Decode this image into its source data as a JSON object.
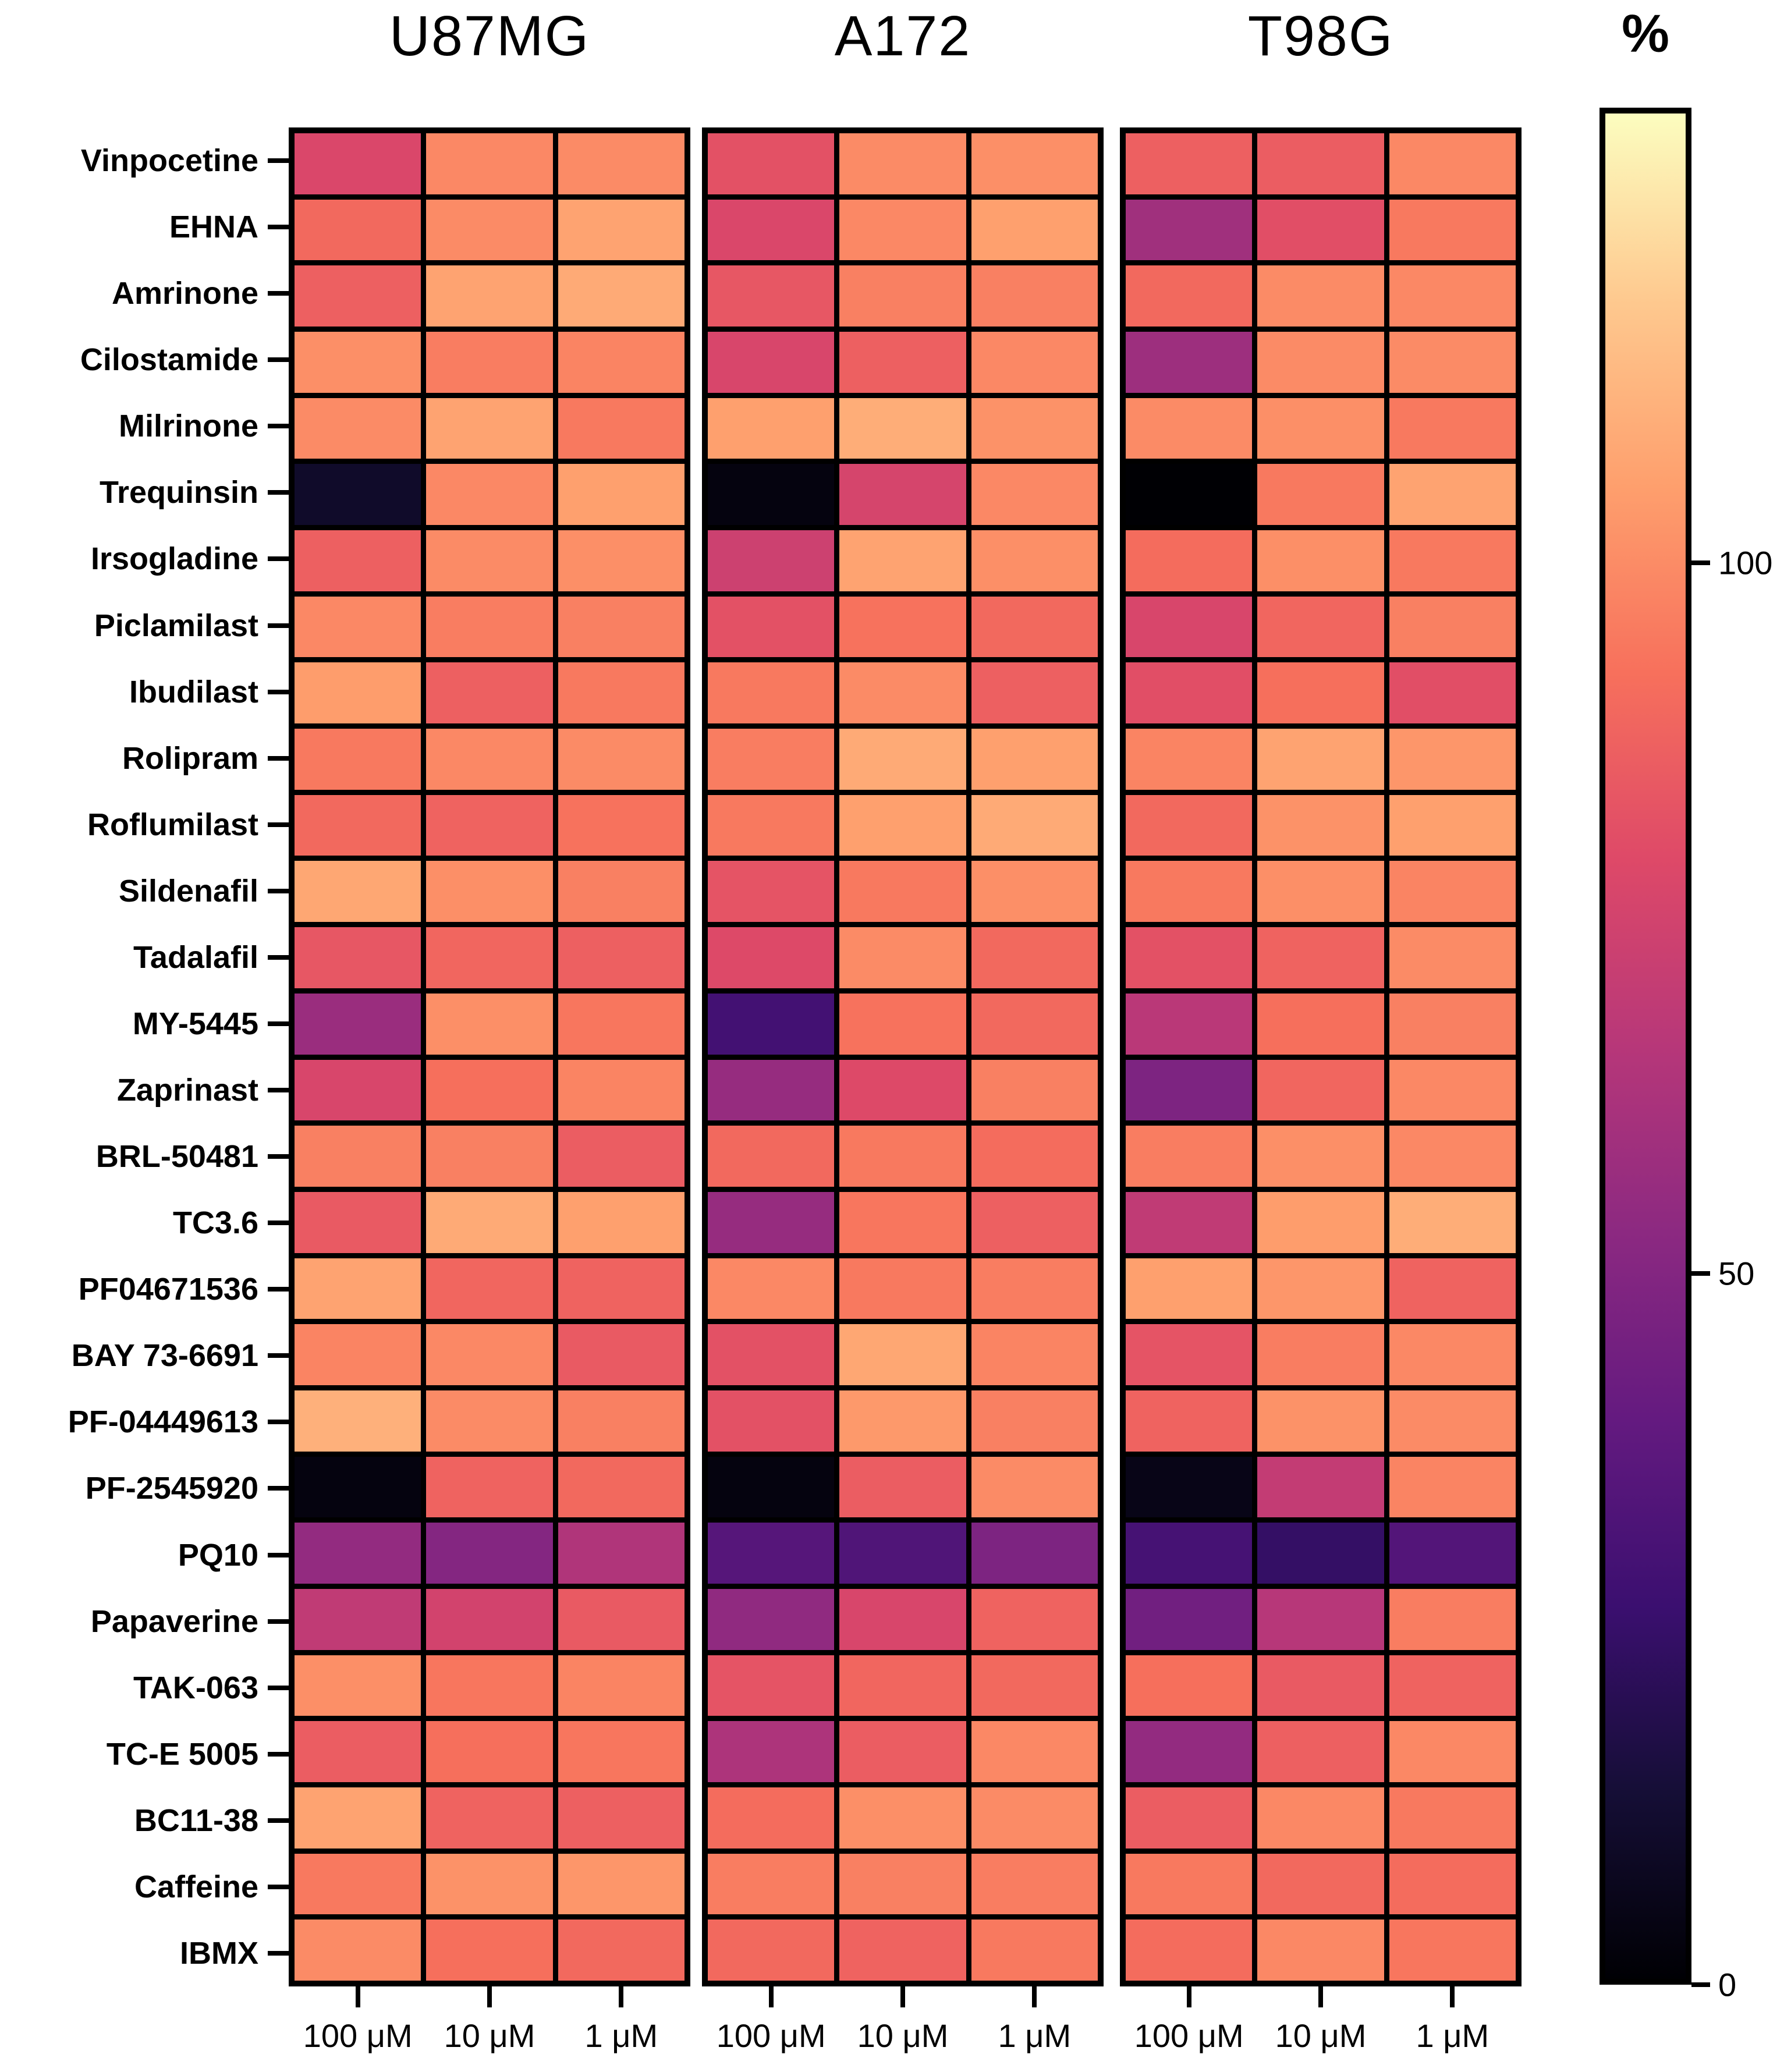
{
  "figure": {
    "colorbar_title": "%",
    "colorbar_tick_labels": [
      "100",
      "50",
      "0"
    ]
  },
  "chart_data": {
    "type": "heatmap",
    "title": "",
    "unit": "%",
    "colormap": "magma",
    "legend_position": "right-colorbar",
    "grid": "black cell borders",
    "cell_lines": [
      "U87MG",
      "A172",
      "T98G"
    ],
    "columns": [
      "100 μM",
      "10 μM",
      "1 μM"
    ],
    "rows": [
      "Vinpocetine",
      "EHNA",
      "Amrinone",
      "Cilostamide",
      "Milrinone",
      "Trequinsin",
      "Irsogladine",
      "Piclamilast",
      "Ibudilast",
      "Rolipram",
      "Roflumilast",
      "Sildenafil",
      "Tadalafil",
      "MY-5445",
      "Zaprinast",
      "BRL-50481",
      "TC3.6",
      "PF04671536",
      "BAY 73-6691",
      "PF-04449613",
      "PF-2545920",
      "PQ10",
      "Papaverine",
      "TAK-063",
      "TC-E 5005",
      "BC11-38",
      "Caffeine",
      "IBMX"
    ],
    "scale": {
      "vmin": 0,
      "vmax": 132,
      "colorbar_ticks": [
        100,
        50,
        0
      ]
    },
    "series": [
      {
        "name": "U87MG",
        "values": [
          [
            78,
            99,
            100
          ],
          [
            90,
            100,
            107
          ],
          [
            87,
            107,
            109
          ],
          [
            101,
            96,
            98
          ],
          [
            100,
            107,
            95
          ],
          [
            10,
            99,
            106
          ],
          [
            87,
            100,
            101
          ],
          [
            99,
            96,
            97
          ],
          [
            105,
            87,
            95
          ],
          [
            95,
            99,
            100
          ],
          [
            90,
            88,
            93
          ],
          [
            108,
            101,
            97
          ],
          [
            84,
            89,
            87
          ],
          [
            57,
            101,
            94
          ],
          [
            77,
            92,
            98
          ],
          [
            97,
            97,
            86
          ],
          [
            85,
            109,
            106
          ],
          [
            107,
            89,
            88
          ],
          [
            98,
            99,
            85
          ],
          [
            111,
            100,
            97
          ],
          [
            3,
            88,
            90
          ],
          [
            55,
            50,
            64
          ],
          [
            69,
            75,
            85
          ],
          [
            101,
            94,
            98
          ],
          [
            86,
            92,
            94
          ],
          [
            107,
            88,
            87
          ],
          [
            95,
            102,
            103
          ],
          [
            100,
            92,
            90
          ]
        ]
      },
      {
        "name": "A172",
        "values": [
          [
            82,
            100,
            101
          ],
          [
            78,
            99,
            106
          ],
          [
            84,
            97,
            97
          ],
          [
            77,
            87,
            99
          ],
          [
            106,
            110,
            102
          ],
          [
            3,
            76,
            99
          ],
          [
            73,
            107,
            101
          ],
          [
            82,
            93,
            90
          ],
          [
            95,
            100,
            87
          ],
          [
            96,
            109,
            106
          ],
          [
            95,
            106,
            109
          ],
          [
            83,
            95,
            101
          ],
          [
            79,
            100,
            90
          ],
          [
            29,
            93,
            90
          ],
          [
            56,
            79,
            97
          ],
          [
            90,
            95,
            91
          ],
          [
            56,
            94,
            87
          ],
          [
            99,
            95,
            96
          ],
          [
            82,
            108,
            98
          ],
          [
            82,
            104,
            97
          ],
          [
            3,
            86,
            100
          ],
          [
            35,
            33,
            48
          ],
          [
            54,
            77,
            88
          ],
          [
            83,
            89,
            90
          ],
          [
            63,
            86,
            99
          ],
          [
            91,
            101,
            100
          ],
          [
            96,
            97,
            96
          ],
          [
            90,
            88,
            95
          ]
        ]
      },
      {
        "name": "T98G",
        "values": [
          [
            87,
            86,
            99
          ],
          [
            59,
            81,
            95
          ],
          [
            90,
            100,
            99
          ],
          [
            58,
            100,
            100
          ],
          [
            100,
            101,
            95
          ],
          [
            0,
            95,
            107
          ],
          [
            91,
            101,
            95
          ],
          [
            77,
            89,
            97
          ],
          [
            81,
            92,
            81
          ],
          [
            98,
            107,
            103
          ],
          [
            90,
            102,
            106
          ],
          [
            95,
            101,
            98
          ],
          [
            82,
            88,
            100
          ],
          [
            67,
            92,
            97
          ],
          [
            48,
            89,
            99
          ],
          [
            96,
            101,
            99
          ],
          [
            69,
            105,
            110
          ],
          [
            106,
            103,
            88
          ],
          [
            83,
            96,
            99
          ],
          [
            88,
            102,
            100
          ],
          [
            5,
            70,
            98
          ],
          [
            30,
            24,
            34
          ],
          [
            44,
            66,
            96
          ],
          [
            92,
            85,
            88
          ],
          [
            55,
            87,
            99
          ],
          [
            86,
            99,
            95
          ],
          [
            95,
            90,
            91
          ],
          [
            91,
            99,
            94
          ]
        ]
      }
    ]
  }
}
